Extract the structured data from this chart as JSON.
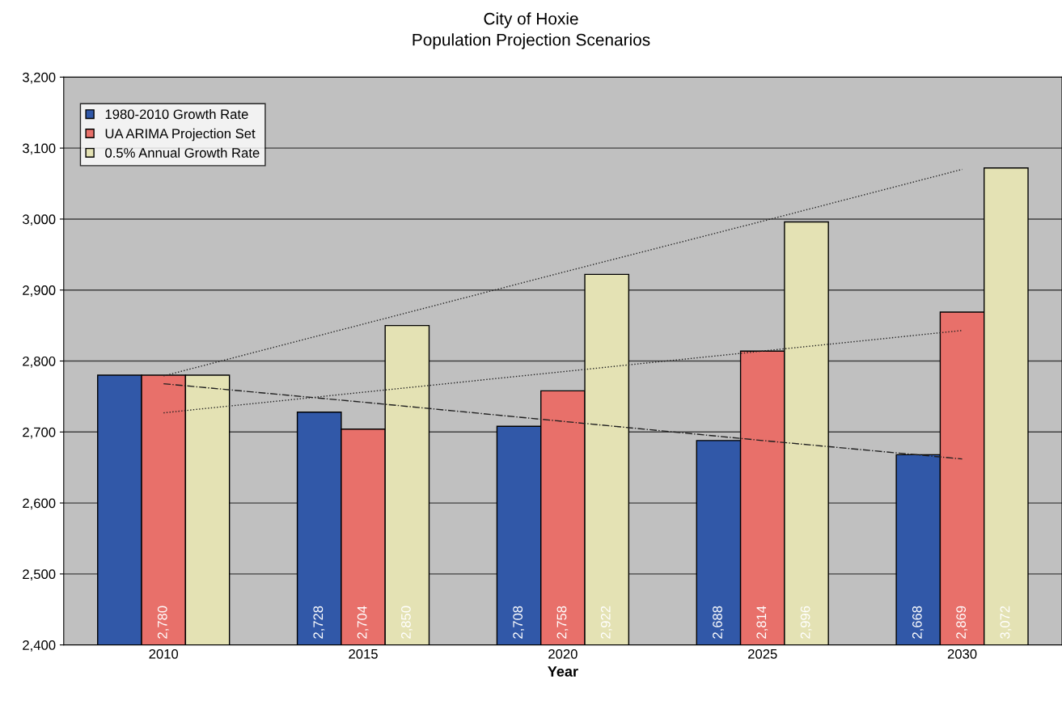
{
  "chart_data": {
    "type": "bar",
    "title": "City of Hoxie",
    "subtitle": "Population Projection Scenarios",
    "xlabel": "Year",
    "categories": [
      "2010",
      "2015",
      "2020",
      "2025",
      "2030"
    ],
    "series": [
      {
        "name": "1980-2010 Growth Rate",
        "color": "#3158a8",
        "values": [
          2780,
          2728,
          2708,
          2688,
          2668
        ],
        "value_labels": [
          null,
          "2,728",
          "2,708",
          "2,688",
          "2,668"
        ]
      },
      {
        "name": "UA ARIMA Projection Set",
        "color": "#e8706a",
        "values": [
          2780,
          2704,
          2758,
          2814,
          2869
        ],
        "value_labels": [
          "2,780",
          "2,704",
          "2,758",
          "2,814",
          "2,869"
        ]
      },
      {
        "name": "0.5% Annual Growth Rate",
        "color": "#e4e2b4",
        "values": [
          2780,
          2850,
          2922,
          2996,
          3072
        ],
        "value_labels": [
          null,
          "2,850",
          "2,922",
          "2,996",
          "3,072"
        ]
      },
      {
        "type": "line",
        "color": "#202020",
        "line_style": "dashed",
        "values": [
          2768,
          2742,
          2715,
          2688,
          2662
        ]
      },
      {
        "type": "line",
        "color": "#202020",
        "line_style": "dotted",
        "values": [
          2727,
          2756,
          2785,
          2814,
          2843
        ]
      },
      {
        "type": "line",
        "color": "#202020",
        "line_style": "dotted",
        "values": [
          2779,
          2852,
          2925,
          2997,
          3070
        ]
      }
    ],
    "ylim": [
      2400,
      3200
    ],
    "yticks": [
      {
        "value": 2400,
        "label": "2,400"
      },
      {
        "value": 2500,
        "label": "2,500"
      },
      {
        "value": 2600,
        "label": "2,600"
      },
      {
        "value": 2700,
        "label": "2,700"
      },
      {
        "value": 2800,
        "label": "2,800"
      },
      {
        "value": 2900,
        "label": "2,900"
      },
      {
        "value": 3000,
        "label": "3,000"
      },
      {
        "value": 3100,
        "label": "3,100"
      },
      {
        "value": 3200,
        "label": "3,200"
      }
    ],
    "grid": "y",
    "legend": "top left"
  }
}
